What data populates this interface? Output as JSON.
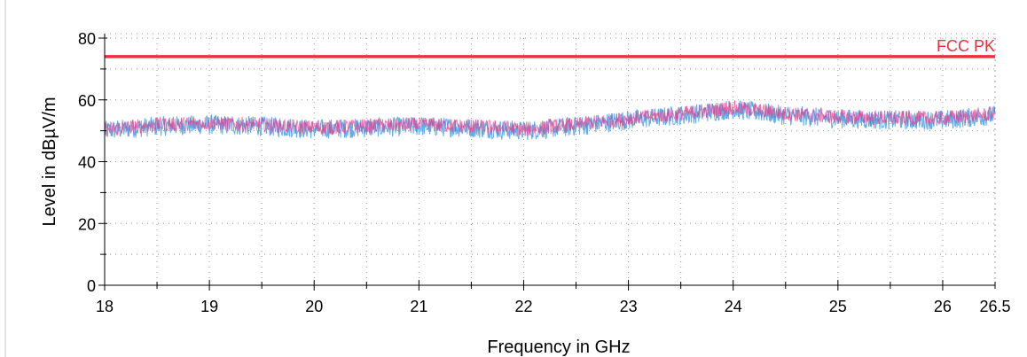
{
  "chart_data": {
    "type": "line",
    "xlabel": "Frequency in GHz",
    "ylabel": "Level in dBµV/m",
    "xlim": [
      18,
      26.5
    ],
    "ylim": [
      0,
      80
    ],
    "x_ticks": [
      18,
      19,
      20,
      21,
      22,
      23,
      24,
      25,
      26,
      26.5
    ],
    "y_ticks": [
      0,
      20,
      40,
      60,
      80
    ],
    "grid": true,
    "limit_lines": [
      {
        "label": "FCC PK",
        "value": 74,
        "color": "#e8323c"
      }
    ],
    "series": [
      {
        "color": "#5aa9e6",
        "x": [
          18,
          18.5,
          19,
          19.5,
          20,
          20.5,
          21,
          21.5,
          22,
          22.5,
          23,
          23.5,
          24,
          24.5,
          25,
          25.5,
          26,
          26.5
        ],
        "y": [
          50,
          51.5,
          52,
          51.5,
          50.5,
          51,
          51.5,
          51,
          50,
          51.5,
          53.5,
          55,
          57,
          55,
          54,
          53.5,
          53.5,
          55
        ]
      },
      {
        "color": "#e83c8c",
        "x": [
          18,
          18.5,
          19,
          19.5,
          20,
          20.5,
          21,
          21.5,
          22,
          22.5,
          23,
          23.5,
          24,
          24.5,
          25,
          25.5,
          26,
          26.5
        ],
        "y": [
          50.5,
          52,
          52.5,
          52,
          51,
          51.5,
          52,
          51.5,
          50.5,
          52,
          54,
          55.5,
          57.5,
          55.5,
          54.5,
          54,
          54,
          55.5
        ]
      }
    ]
  }
}
